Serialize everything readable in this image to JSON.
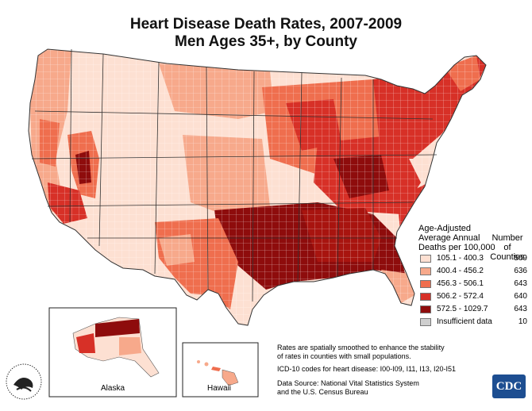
{
  "title": {
    "line1": "Heart Disease Death Rates, 2007-2009",
    "line2": "Men Ages 35+, by County"
  },
  "legend": {
    "heading_line1": "Age-Adjusted",
    "heading_line2": "Average Annual",
    "heading_line3": "Deaths per 100,000",
    "count_heading_line1": "Number of",
    "count_heading_line2": "Counties",
    "classes": [
      {
        "label": "105.1 - 400.3",
        "count": "569",
        "color": "#fde0d2"
      },
      {
        "label": "400.4 - 456.2",
        "count": "636",
        "color": "#f7a98b"
      },
      {
        "label": "456.3 - 506.1",
        "count": "643",
        "color": "#ef6e4e"
      },
      {
        "label": "506.2 - 572.4",
        "count": "640",
        "color": "#d73027"
      },
      {
        "label": "572.5 - 1029.7",
        "count": "643",
        "color": "#8e0c0c"
      },
      {
        "label": "Insufficient data",
        "count": "10",
        "color": "#cfcfcf"
      }
    ]
  },
  "insets": {
    "alaska_label": "Alaska",
    "hawaii_label": "Hawaii"
  },
  "notes": {
    "line1": "Rates are spatially smoothed to enhance the stability",
    "line2": "of rates in counties with small populations.",
    "line3": "ICD-10 codes for heart disease: I00-I09, I11, I13, I20-I51",
    "line4": "Data Source: National Vital Statistics System",
    "line5": "and the U.S. Census Bureau"
  },
  "logos": {
    "cdc": "CDC",
    "hhs_icon": "hhs-eagle-seal"
  }
}
